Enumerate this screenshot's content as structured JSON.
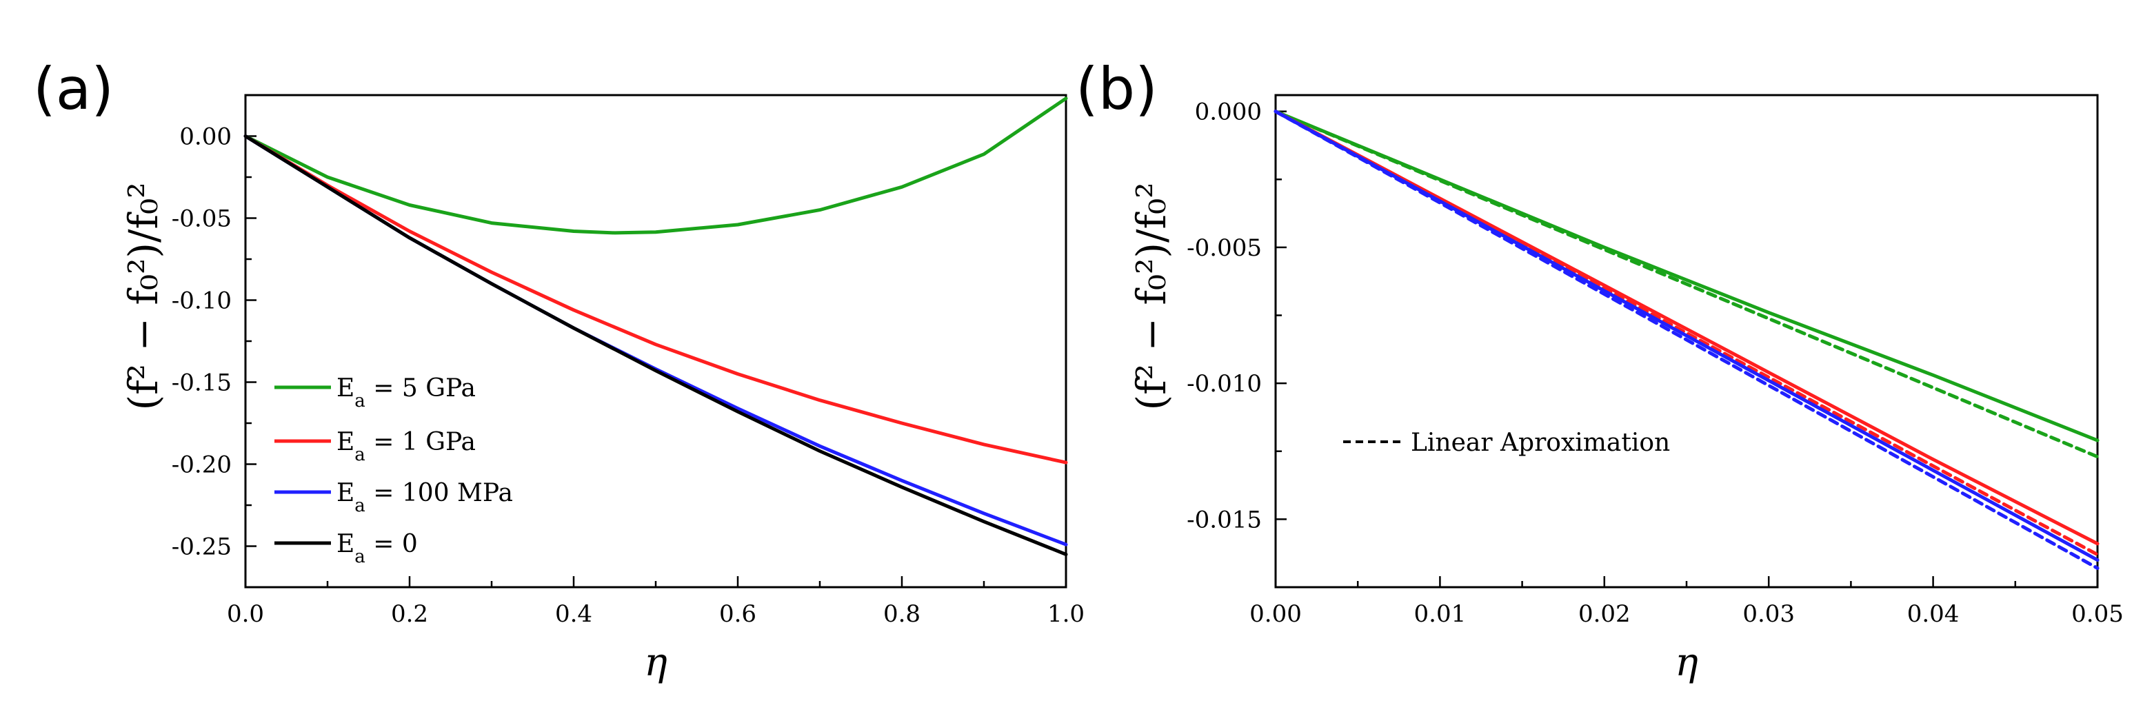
{
  "colors": {
    "green": "#1aa31a",
    "red": "#ff1f1f",
    "blue": "#2020ff",
    "black": "#000000"
  },
  "chart_data": [
    {
      "id": "a",
      "panel_label": "(a)",
      "type": "line",
      "xlabel": "η",
      "ylabel": "(f² − f₀²)/f₀²",
      "xlim": [
        0,
        1.0
      ],
      "ylim": [
        -0.275,
        0.025
      ],
      "xticks": [
        "0.0",
        "0.2",
        "0.4",
        "0.6",
        "0.8",
        "1.0"
      ],
      "xtick_values": [
        0,
        0.2,
        0.4,
        0.6,
        0.8,
        1.0
      ],
      "yticks": [
        "0.00",
        "-0.05",
        "-0.10",
        "-0.15",
        "-0.20",
        "-0.25"
      ],
      "ytick_values": [
        0,
        -0.05,
        -0.1,
        -0.15,
        -0.2,
        -0.25
      ],
      "legend_position": "lower-left",
      "series": [
        {
          "name": "Ea = 5 GPa",
          "legend_main": "E",
          "legend_sub": "a",
          "legend_rest": " = 5 GPa",
          "color": "green",
          "dash": false,
          "x": [
            0,
            0.1,
            0.2,
            0.3,
            0.4,
            0.45,
            0.5,
            0.6,
            0.7,
            0.8,
            0.9,
            1.0
          ],
          "y": [
            0,
            -0.025,
            -0.042,
            -0.053,
            -0.058,
            -0.059,
            -0.0585,
            -0.054,
            -0.045,
            -0.031,
            -0.011,
            0.023
          ]
        },
        {
          "name": "Ea = 1 GPa",
          "legend_main": "E",
          "legend_sub": "a",
          "legend_rest": " = 1 GPa",
          "color": "red",
          "dash": false,
          "x": [
            0,
            0.1,
            0.2,
            0.3,
            0.4,
            0.5,
            0.6,
            0.7,
            0.8,
            0.9,
            1.0
          ],
          "y": [
            0,
            -0.03,
            -0.058,
            -0.083,
            -0.106,
            -0.127,
            -0.145,
            -0.161,
            -0.175,
            -0.188,
            -0.199
          ]
        },
        {
          "name": "Ea = 100 MPa",
          "legend_main": "E",
          "legend_sub": "a",
          "legend_rest": " = 100 MPa",
          "color": "blue",
          "dash": false,
          "x": [
            0,
            0.1,
            0.2,
            0.3,
            0.4,
            0.5,
            0.6,
            0.7,
            0.8,
            0.9,
            1.0
          ],
          "y": [
            0,
            -0.031,
            -0.062,
            -0.09,
            -0.117,
            -0.142,
            -0.166,
            -0.189,
            -0.21,
            -0.23,
            -0.249
          ]
        },
        {
          "name": "Ea = 0",
          "legend_main": "E",
          "legend_sub": "a",
          "legend_rest": " = 0",
          "color": "black",
          "dash": false,
          "x": [
            0,
            0.1,
            0.2,
            0.3,
            0.4,
            0.5,
            0.6,
            0.7,
            0.8,
            0.9,
            1.0
          ],
          "y": [
            0,
            -0.031,
            -0.062,
            -0.09,
            -0.117,
            -0.143,
            -0.168,
            -0.192,
            -0.214,
            -0.235,
            -0.255
          ]
        }
      ]
    },
    {
      "id": "b",
      "panel_label": "(b)",
      "type": "line",
      "xlabel": "η",
      "ylabel": "(f² − f₀²)/f₀²",
      "xlim": [
        0,
        0.05
      ],
      "ylim": [
        -0.0175,
        0.0006
      ],
      "xticks": [
        "0.00",
        "0.01",
        "0.02",
        "0.03",
        "0.04",
        "0.05"
      ],
      "xtick_values": [
        0,
        0.01,
        0.02,
        0.03,
        0.04,
        0.05
      ],
      "yticks": [
        "0.000",
        "-0.005",
        "-0.010",
        "-0.015"
      ],
      "ytick_values": [
        0,
        -0.005,
        -0.01,
        -0.015
      ],
      "legend_position": "center-left",
      "legend": [
        {
          "label": "Linear Aproximation",
          "color": "black",
          "dash": true
        }
      ],
      "series": [
        {
          "name": "Ea = 5 GPa",
          "color": "green",
          "dash": false,
          "x": [
            0,
            0.01,
            0.02,
            0.03,
            0.04,
            0.05
          ],
          "y": [
            0,
            -0.0025,
            -0.005,
            -0.0074,
            -0.0097,
            -0.0121
          ]
        },
        {
          "name": "Ea = 5 GPa linear",
          "color": "green",
          "dash": true,
          "x": [
            0,
            0.05
          ],
          "y": [
            0,
            -0.0127
          ]
        },
        {
          "name": "Ea = 1 GPa",
          "color": "red",
          "dash": false,
          "x": [
            0,
            0.01,
            0.02,
            0.03,
            0.04,
            0.05
          ],
          "y": [
            0,
            -0.0032,
            -0.0064,
            -0.0096,
            -0.0128,
            -0.0159
          ]
        },
        {
          "name": "Ea = 1 GPa linear",
          "color": "red",
          "dash": true,
          "x": [
            0,
            0.05
          ],
          "y": [
            0,
            -0.0163
          ]
        },
        {
          "name": "Ea = 100 MPa",
          "color": "blue",
          "dash": false,
          "x": [
            0,
            0.01,
            0.02,
            0.03,
            0.04,
            0.05
          ],
          "y": [
            0,
            -0.0033,
            -0.0066,
            -0.0099,
            -0.0132,
            -0.0165
          ]
        },
        {
          "name": "Ea = 100 MPa linear",
          "color": "blue",
          "dash": true,
          "x": [
            0,
            0.05
          ],
          "y": [
            0,
            -0.0168
          ]
        }
      ]
    }
  ]
}
